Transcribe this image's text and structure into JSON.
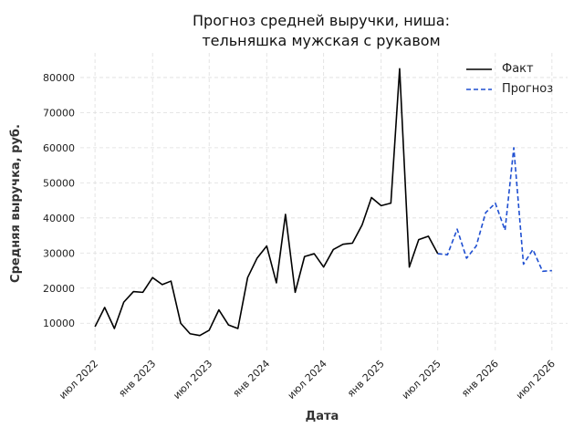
{
  "chart_data": {
    "type": "line",
    "title_lines": [
      "Прогноз средней выручки, ниша:",
      "тельняшка мужская с рукавом"
    ],
    "xlabel": "Дата",
    "ylabel": "Средняя выручка, руб.",
    "grid": true,
    "legend_placement": "top-right",
    "ylim": [
      2000,
      87000
    ],
    "xlim": [
      "2022-05-15",
      "2026-08-20"
    ],
    "y_ticks": [
      10000,
      20000,
      30000,
      40000,
      50000,
      60000,
      70000,
      80000
    ],
    "x_ticks": [
      {
        "date": "2022-07-01",
        "label": "июл 2022"
      },
      {
        "date": "2023-01-01",
        "label": "янв 2023"
      },
      {
        "date": "2023-07-01",
        "label": "июл 2023"
      },
      {
        "date": "2024-01-01",
        "label": "янв 2024"
      },
      {
        "date": "2024-07-01",
        "label": "июл 2024"
      },
      {
        "date": "2025-01-01",
        "label": "янв 2025"
      },
      {
        "date": "2025-07-01",
        "label": "июл 2025"
      },
      {
        "date": "2026-01-01",
        "label": "янв 2026"
      },
      {
        "date": "2026-07-01",
        "label": "июл 2026"
      }
    ],
    "series": [
      {
        "name": "Факт",
        "color": "#000000",
        "style": "solid",
        "points": [
          [
            "2022-07-01",
            9000
          ],
          [
            "2022-08-01",
            14500
          ],
          [
            "2022-09-01",
            8500
          ],
          [
            "2022-10-01",
            16000
          ],
          [
            "2022-11-01",
            19000
          ],
          [
            "2022-12-01",
            18800
          ],
          [
            "2023-01-01",
            23000
          ],
          [
            "2023-02-01",
            21000
          ],
          [
            "2023-03-01",
            22000
          ],
          [
            "2023-04-01",
            10000
          ],
          [
            "2023-05-01",
            7000
          ],
          [
            "2023-06-01",
            6500
          ],
          [
            "2023-07-01",
            8000
          ],
          [
            "2023-08-01",
            13800
          ],
          [
            "2023-09-01",
            9500
          ],
          [
            "2023-10-01",
            8500
          ],
          [
            "2023-11-01",
            23000
          ],
          [
            "2023-12-01",
            28500
          ],
          [
            "2024-01-01",
            32000
          ],
          [
            "2024-02-01",
            21500
          ],
          [
            "2024-03-01",
            41000
          ],
          [
            "2024-04-01",
            18800
          ],
          [
            "2024-05-01",
            29000
          ],
          [
            "2024-06-01",
            29800
          ],
          [
            "2024-07-01",
            26000
          ],
          [
            "2024-08-01",
            31000
          ],
          [
            "2024-09-01",
            32500
          ],
          [
            "2024-10-01",
            32800
          ],
          [
            "2024-11-01",
            38000
          ],
          [
            "2024-12-01",
            45800
          ],
          [
            "2025-01-01",
            43500
          ],
          [
            "2025-02-01",
            44200
          ],
          [
            "2025-03-01",
            82500
          ],
          [
            "2025-04-01",
            26000
          ],
          [
            "2025-05-01",
            33800
          ],
          [
            "2025-06-01",
            34800
          ],
          [
            "2025-07-01",
            29800
          ]
        ]
      },
      {
        "name": "Прогноз",
        "color": "#1f4fd1",
        "style": "dashed",
        "points": [
          [
            "2025-07-01",
            29800
          ],
          [
            "2025-08-01",
            29500
          ],
          [
            "2025-09-01",
            36800
          ],
          [
            "2025-10-01",
            28500
          ],
          [
            "2025-11-01",
            32000
          ],
          [
            "2025-12-01",
            41500
          ],
          [
            "2026-01-01",
            44200
          ],
          [
            "2026-02-01",
            36500
          ],
          [
            "2026-03-01",
            60000
          ],
          [
            "2026-04-01",
            26800
          ],
          [
            "2026-05-01",
            31000
          ],
          [
            "2026-06-01",
            24800
          ],
          [
            "2026-07-01",
            25000
          ]
        ]
      }
    ]
  }
}
